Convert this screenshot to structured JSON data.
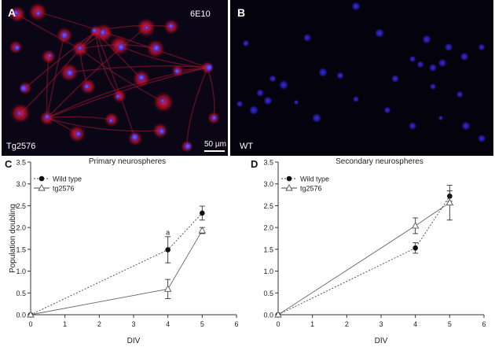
{
  "panelA": {
    "letter": "A",
    "stain": "6E10",
    "genotype": "Tg2576",
    "scale_bar": "50 µm"
  },
  "panelB": {
    "letter": "B",
    "genotype": "WT"
  },
  "chart_data": [
    {
      "panel": "C",
      "type": "line",
      "title": "Primary neurospheres",
      "xlabel": "DIV",
      "ylabel": "Population doubling",
      "xlim": [
        0,
        6
      ],
      "ylim": [
        0,
        3.5
      ],
      "xticks": [
        0,
        1,
        2,
        3,
        4,
        5,
        6
      ],
      "yticks": [
        "0.0",
        "0.5",
        "1.0",
        "1.5",
        "2.0",
        "2.5",
        "3.0",
        "3.5"
      ],
      "legend": "top-left",
      "series": [
        {
          "name": "Wild type",
          "marker": "circle",
          "x": [
            0,
            4,
            5
          ],
          "values": [
            0,
            1.49,
            2.33
          ],
          "error": [
            0,
            0.3,
            0.16
          ]
        },
        {
          "name": "tg2576",
          "marker": "triangle",
          "x": [
            0,
            4,
            5
          ],
          "values": [
            0,
            0.59,
            1.93
          ],
          "error": [
            0,
            0.22,
            0.07
          ]
        }
      ],
      "annotations": [
        {
          "text": "a",
          "x": 4,
          "y": 1.83
        }
      ]
    },
    {
      "panel": "D",
      "type": "line",
      "title": "Secondary neurospheres",
      "xlabel": "DIV",
      "ylabel": "",
      "xlim": [
        0,
        6
      ],
      "ylim": [
        0,
        3.5
      ],
      "xticks": [
        0,
        1,
        2,
        3,
        4,
        5,
        6
      ],
      "yticks": [
        "0.0",
        "0.5",
        "1.0",
        "1.5",
        "2.0",
        "2.5",
        "3.0",
        "3.5"
      ],
      "legend": "top-left",
      "series": [
        {
          "name": "Wild type",
          "marker": "circle",
          "x": [
            0,
            4,
            5
          ],
          "values": [
            0,
            1.53,
            2.72
          ],
          "error": [
            0,
            0.12,
            0.12
          ]
        },
        {
          "name": "tg2576",
          "marker": "triangle",
          "x": [
            0,
            4,
            5
          ],
          "values": [
            0,
            2.04,
            2.57
          ],
          "error": [
            0,
            0.18,
            0.4
          ]
        }
      ],
      "annotations": []
    }
  ]
}
